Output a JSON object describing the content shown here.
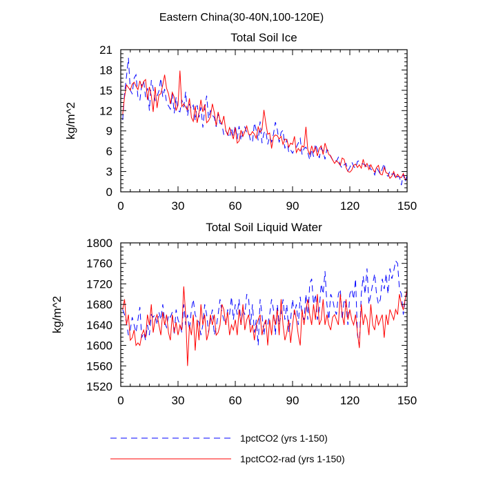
{
  "page_title": "Eastern China(30-40N,100-120E)",
  "colors": {
    "series1": "#0000ff",
    "series2": "#ff0000",
    "axis": "#000000"
  },
  "legend": {
    "placement": "bottom",
    "items": [
      {
        "label": "1pctCO2 (yrs 1-150)",
        "style": "dashed",
        "color": "#0000ff"
      },
      {
        "label": "1pctCO2-rad (yrs 1-150)",
        "style": "solid",
        "color": "#ff0000"
      }
    ]
  },
  "chart_data": [
    {
      "type": "line",
      "title": "Total Soil Ice",
      "xlabel": "",
      "ylabel": "kg/m^2",
      "xlim": [
        0,
        150
      ],
      "ylim": [
        0,
        21
      ],
      "x_ticks": [
        0,
        30,
        60,
        90,
        120,
        150
      ],
      "y_ticks": [
        0,
        3,
        6,
        9,
        12,
        15,
        18,
        21
      ],
      "x_ticks_text": [
        "0",
        "30",
        "60",
        "90",
        "120",
        "150"
      ],
      "y_ticks_text": [
        "0",
        "3",
        "6",
        "9",
        "12",
        "15",
        "18",
        "21"
      ],
      "x_start": 1,
      "x_step": 1,
      "series": [
        {
          "name": "1pctCO2 (yrs 1-150)",
          "values": [
            10.6,
            14.5,
            17.0,
            19.8,
            15.0,
            14.5,
            16.8,
            17.3,
            14.0,
            13.5,
            15.8,
            16.4,
            14.0,
            15.3,
            12.0,
            16.5,
            15.2,
            13.5,
            14.1,
            14.9,
            16.8,
            14.0,
            15.2,
            13.2,
            12.7,
            12.2,
            14.6,
            11.6,
            14.0,
            12.0,
            11.8,
            13.6,
            12.5,
            14.8,
            11.2,
            13.0,
            12.2,
            12.8,
            10.5,
            12.8,
            11.0,
            12.5,
            9.5,
            12.3,
            14.2,
            10.8,
            12.0,
            11.3,
            11.0,
            9.6,
            11.5,
            10.1,
            10.0,
            8.4,
            9.0,
            8.6,
            8.0,
            9.5,
            8.2,
            9.8,
            7.8,
            9.7,
            7.6,
            8.9,
            9.6,
            8.8,
            8.8,
            7.5,
            7.3,
            10.2,
            9.1,
            7.6,
            10.4,
            7.2,
            8.7,
            9.0,
            7.0,
            8.2,
            7.4,
            8.5,
            10.3,
            9.2,
            7.3,
            8.8,
            9.1,
            6.4,
            7.8,
            5.8,
            6.2,
            5.7,
            6.4,
            6.6,
            7.2,
            7.9,
            5.5,
            6.4,
            6.6,
            5.8,
            4.7,
            6.3,
            5.2,
            7.1,
            6.2,
            5.0,
            6.5,
            6.0,
            4.8,
            6.3,
            5.9,
            5.2,
            4.7,
            4.9,
            4.5,
            5.1,
            3.9,
            3.5,
            4.0,
            4.2,
            3.1,
            3.6,
            4.4,
            3.8,
            3.4,
            4.5,
            4.6,
            4.2,
            4.1,
            4.0,
            3.6,
            4.0,
            3.3,
            3.2,
            2.5,
            3.6,
            3.1,
            2.6,
            3.4,
            4.2,
            2.5,
            2.3,
            3.1,
            2.6,
            2.7,
            1.9,
            2.3,
            2.2,
            1.0,
            2.6,
            1.5,
            2.4
          ]
        },
        {
          "name": "1pctCO2-rad (yrs 1-150)",
          "values": [
            11.5,
            14.0,
            15.8,
            15.4,
            15.0,
            15.9,
            16.2,
            15.6,
            15.1,
            16.4,
            15.4,
            16.3,
            16.6,
            13.6,
            15.5,
            14.2,
            11.8,
            15.5,
            12.4,
            14.3,
            14.5,
            15.8,
            17.3,
            15.3,
            14.5,
            13.0,
            14.7,
            14.0,
            12.0,
            12.8,
            17.9,
            12.6,
            13.0,
            12.5,
            12.1,
            13.8,
            11.0,
            10.4,
            12.7,
            10.2,
            11.6,
            13.6,
            11.8,
            12.9,
            10.2,
            10.5,
            11.1,
            13.0,
            11.7,
            9.8,
            11.8,
            10.6,
            10.0,
            11.2,
            9.1,
            8.4,
            9.5,
            8.7,
            7.8,
            9.5,
            7.2,
            7.5,
            9.1,
            8.2,
            8.9,
            9.7,
            8.5,
            8.4,
            8.9,
            8.5,
            7.9,
            9.6,
            8.8,
            9.2,
            12.1,
            10.1,
            8.5,
            8.7,
            6.4,
            8.1,
            8.4,
            8.3,
            7.8,
            8.2,
            7.0,
            7.8,
            7.7,
            6.6,
            7.2,
            7.0,
            8.2,
            5.8,
            6.4,
            6.0,
            6.8,
            6.6,
            9.6,
            6.2,
            5.5,
            6.8,
            5.8,
            6.6,
            5.3,
            6.4,
            6.8,
            5.5,
            7.2,
            6.3,
            5.5,
            5.3,
            4.7,
            4.2,
            4.6,
            4.3,
            3.9,
            5.0,
            4.8,
            3.6,
            3.0,
            2.9,
            3.2,
            3.9,
            4.1,
            3.6,
            4.0,
            3.5,
            4.8,
            3.7,
            4.2,
            3.3,
            4.0,
            3.4,
            2.9,
            3.6,
            3.9,
            2.6,
            2.5,
            3.6,
            2.8,
            2.7,
            2.0,
            2.3,
            3.0,
            2.1,
            2.6,
            2.2,
            2.1,
            2.7,
            1.9,
            1.7
          ]
        }
      ]
    },
    {
      "type": "line",
      "title": "Total Soil Liquid Water",
      "xlabel": "",
      "ylabel": "kg/m^2",
      "xlim": [
        0,
        150
      ],
      "ylim": [
        1520,
        1800
      ],
      "x_ticks": [
        0,
        30,
        60,
        90,
        120,
        150
      ],
      "y_ticks": [
        1520,
        1560,
        1600,
        1640,
        1680,
        1720,
        1760,
        1800
      ],
      "x_ticks_text": [
        "0",
        "30",
        "60",
        "90",
        "120",
        "150"
      ],
      "y_ticks_text": [
        "1520",
        "1560",
        "1600",
        "1640",
        "1680",
        "1720",
        "1760",
        "1800"
      ],
      "x_start": 1,
      "x_step": 1,
      "series": [
        {
          "name": "1pctCO2 (yrs 1-150)",
          "values": [
            1670,
            1660,
            1645,
            1620,
            1630,
            1655,
            1640,
            1625,
            1650,
            1675,
            1615,
            1625,
            1610,
            1640,
            1620,
            1660,
            1655,
            1660,
            1640,
            1665,
            1650,
            1680,
            1645,
            1635,
            1660,
            1655,
            1665,
            1620,
            1670,
            1650,
            1640,
            1625,
            1680,
            1640,
            1660,
            1630,
            1670,
            1690,
            1660,
            1650,
            1645,
            1620,
            1640,
            1680,
            1660,
            1625,
            1650,
            1670,
            1620,
            1635,
            1660,
            1690,
            1665,
            1650,
            1640,
            1670,
            1660,
            1695,
            1650,
            1680,
            1660,
            1690,
            1640,
            1670,
            1660,
            1700,
            1690,
            1640,
            1680,
            1625,
            1650,
            1600,
            1690,
            1660,
            1620,
            1650,
            1640,
            1660,
            1690,
            1670,
            1620,
            1680,
            1640,
            1660,
            1690,
            1650,
            1680,
            1625,
            1650,
            1690,
            1660,
            1680,
            1640,
            1695,
            1660,
            1650,
            1700,
            1650,
            1720,
            1730,
            1680,
            1700,
            1650,
            1670,
            1720,
            1700,
            1745,
            1680,
            1650,
            1700,
            1690,
            1670,
            1660,
            1700,
            1710,
            1650,
            1690,
            1680,
            1640,
            1700,
            1710,
            1690,
            1730,
            1620,
            1600,
            1700,
            1735,
            1700,
            1750,
            1680,
            1700,
            1720,
            1740,
            1700,
            1680,
            1690,
            1730,
            1710,
            1740,
            1700,
            1750,
            1730,
            1745,
            1765,
            1760,
            1710,
            1700,
            1660,
            1690,
            1705
          ]
        },
        {
          "name": "1pctCO2-rad (yrs 1-150)",
          "values": [
            1670,
            1690,
            1640,
            1660,
            1610,
            1615,
            1630,
            1600,
            1605,
            1600,
            1620,
            1630,
            1615,
            1660,
            1640,
            1680,
            1625,
            1650,
            1660,
            1640,
            1620,
            1665,
            1640,
            1660,
            1625,
            1610,
            1660,
            1625,
            1645,
            1620,
            1640,
            1630,
            1715,
            1660,
            1560,
            1640,
            1620,
            1660,
            1590,
            1650,
            1610,
            1680,
            1640,
            1660,
            1610,
            1625,
            1660,
            1640,
            1660,
            1620,
            1625,
            1640,
            1680,
            1670,
            1640,
            1665,
            1620,
            1640,
            1630,
            1650,
            1620,
            1670,
            1640,
            1680,
            1630,
            1650,
            1660,
            1625,
            1640,
            1610,
            1640,
            1650,
            1660,
            1620,
            1640,
            1650,
            1600,
            1650,
            1620,
            1660,
            1640,
            1670,
            1620,
            1690,
            1640,
            1610,
            1625,
            1650,
            1605,
            1640,
            1670,
            1650,
            1620,
            1600,
            1670,
            1640,
            1670,
            1690,
            1660,
            1640,
            1680,
            1650,
            1700,
            1640,
            1650,
            1690,
            1640,
            1660,
            1640,
            1630,
            1655,
            1660,
            1650,
            1640,
            1700,
            1660,
            1640,
            1690,
            1650,
            1670,
            1650,
            1640,
            1660,
            1625,
            1595,
            1680,
            1640,
            1660,
            1650,
            1620,
            1680,
            1640,
            1630,
            1660,
            1640,
            1650,
            1660,
            1615,
            1660,
            1640,
            1670,
            1660,
            1650,
            1670,
            1660,
            1700,
            1680,
            1670,
            1690,
            1710
          ]
        }
      ]
    }
  ]
}
